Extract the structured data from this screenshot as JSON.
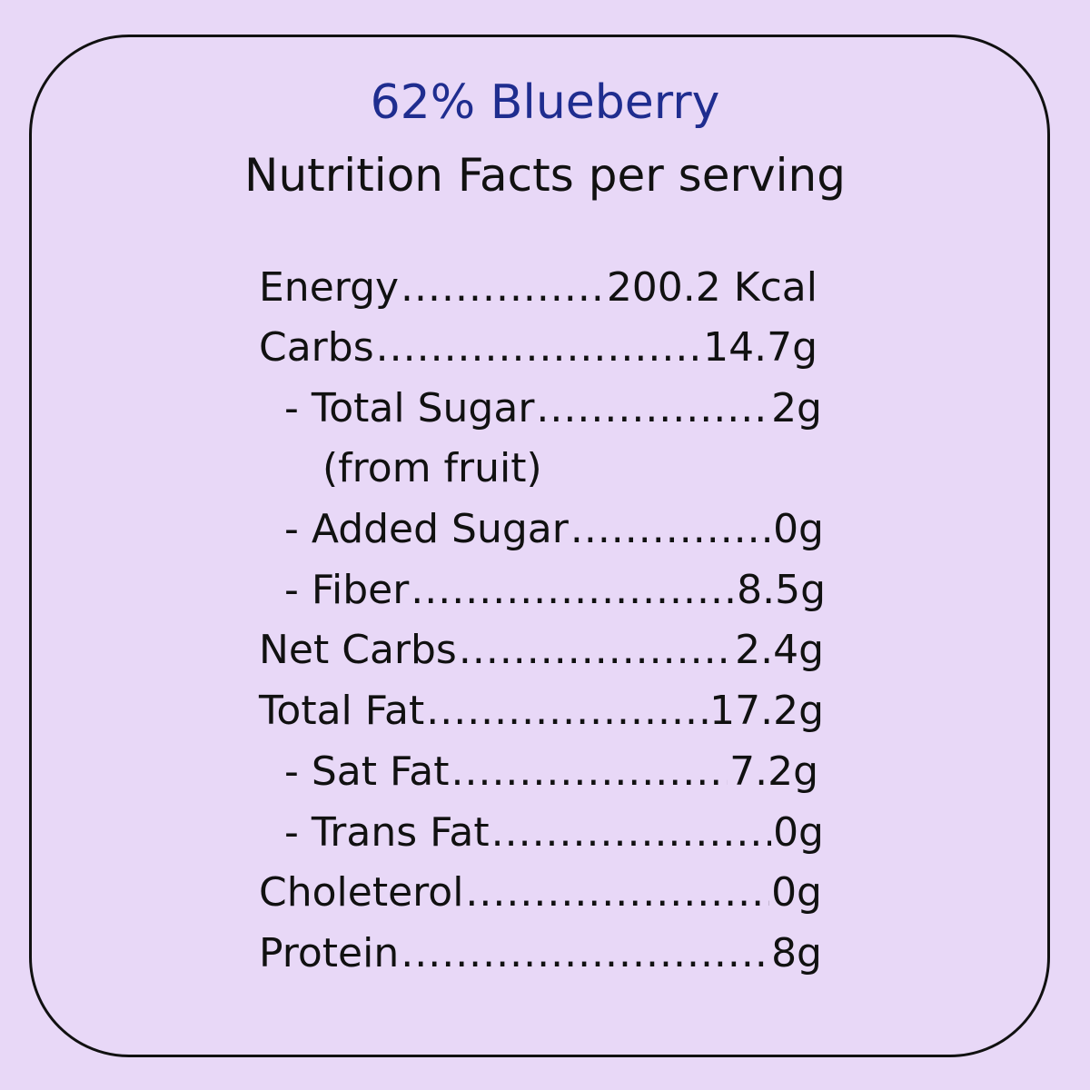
{
  "header": {
    "product": "62% Blueberry",
    "subtitle": "Nutrition Facts per serving"
  },
  "nutrients": [
    {
      "label": "Energy",
      "value": "200.2 Kcal"
    },
    {
      "label": "Carbs",
      "value": "14.7g"
    },
    {
      "label": "- Total Sugar",
      "value": "2g"
    },
    {
      "label": "- Added Sugar",
      "value": "0g"
    },
    {
      "label": "- Fiber",
      "value": "8.5g"
    },
    {
      "label": "Net Carbs",
      "value": "2.4g"
    },
    {
      "label": "Total Fat",
      "value": "17.2g"
    },
    {
      "label": "- Sat Fat",
      "value": "7.2g"
    },
    {
      "label": "- Trans Fat",
      "value": "0g"
    },
    {
      "label": "Choleterol",
      "value": "0g"
    },
    {
      "label": "Protein",
      "value": "8g"
    }
  ],
  "notes": {
    "total_sugar_note": "(from fruit)"
  },
  "colors": {
    "background": "#e8d8f7",
    "title": "#1f2d8f",
    "text": "#111111"
  }
}
